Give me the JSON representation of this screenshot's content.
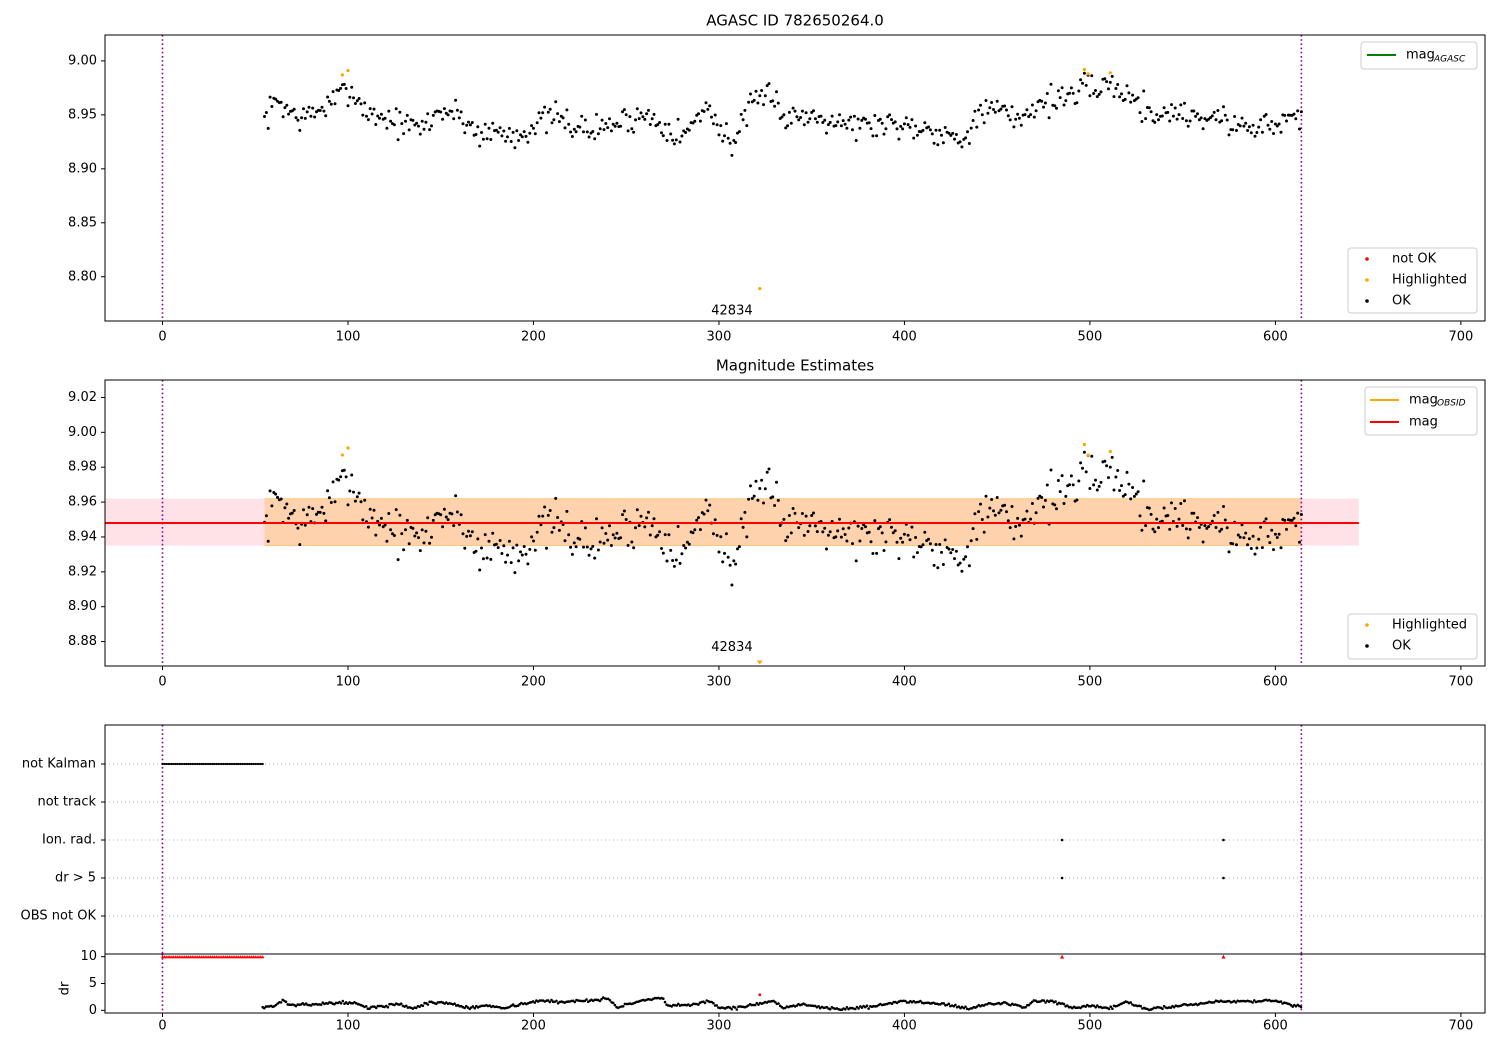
{
  "chart_data": [
    {
      "type": "scatter",
      "title": "AGASC ID 782650264.0",
      "xlabel": "",
      "ylabel": "",
      "xlim": [
        -31,
        713
      ],
      "ylim": [
        8.759,
        9.024
      ],
      "x_ticks": [
        0,
        100,
        200,
        300,
        400,
        500,
        600,
        700
      ],
      "y_ticks": [
        8.8,
        8.85,
        8.9,
        8.95,
        9.0
      ],
      "vlines": [
        0,
        614
      ],
      "grid": false,
      "annotations": [
        {
          "text": "42834",
          "x": 307,
          "y": 8.77
        }
      ],
      "legend_lines": {
        "position": "top-right",
        "entries": [
          {
            "label": "mag",
            "subscript": "AGASC",
            "color": "#008000"
          }
        ]
      },
      "legend_markers": {
        "position": "bottom-right",
        "entries": [
          {
            "label": "not OK",
            "color": "#ff0000"
          },
          {
            "label": "Highlighted",
            "color": "#ffa500"
          },
          {
            "label": "OK",
            "color": "#000000"
          }
        ]
      },
      "highlighted_points": [
        {
          "x": 97,
          "y": 8.987
        },
        {
          "x": 100,
          "y": 8.991
        },
        {
          "x": 497,
          "y": 8.992
        },
        {
          "x": 499,
          "y": 8.988
        },
        {
          "x": 511,
          "y": 8.989
        },
        {
          "x": 322,
          "y": 8.789
        }
      ],
      "ok_series_profile": {
        "x_range": [
          55,
          614
        ],
        "knots": [
          [
            55,
            8.945
          ],
          [
            62,
            8.965
          ],
          [
            67,
            8.955
          ],
          [
            75,
            8.946
          ],
          [
            85,
            8.955
          ],
          [
            92,
            8.962
          ],
          [
            100,
            8.975
          ],
          [
            105,
            8.965
          ],
          [
            112,
            8.95
          ],
          [
            120,
            8.948
          ],
          [
            130,
            8.94
          ],
          [
            140,
            8.938
          ],
          [
            150,
            8.955
          ],
          [
            160,
            8.95
          ],
          [
            170,
            8.933
          ],
          [
            180,
            8.935
          ],
          [
            190,
            8.93
          ],
          [
            200,
            8.94
          ],
          [
            210,
            8.948
          ],
          [
            220,
            8.942
          ],
          [
            230,
            8.935
          ],
          [
            240,
            8.94
          ],
          [
            250,
            8.945
          ],
          [
            260,
            8.95
          ],
          [
            270,
            8.942
          ],
          [
            280,
            8.93
          ],
          [
            288,
            8.945
          ],
          [
            295,
            8.962
          ],
          [
            300,
            8.935
          ],
          [
            308,
            8.925
          ],
          [
            315,
            8.95
          ],
          [
            325,
            8.968
          ],
          [
            330,
            8.972
          ],
          [
            335,
            8.945
          ],
          [
            345,
            8.95
          ],
          [
            360,
            8.948
          ],
          [
            375,
            8.94
          ],
          [
            390,
            8.942
          ],
          [
            405,
            8.94
          ],
          [
            420,
            8.935
          ],
          [
            430,
            8.925
          ],
          [
            438,
            8.948
          ],
          [
            450,
            8.955
          ],
          [
            460,
            8.945
          ],
          [
            470,
            8.958
          ],
          [
            480,
            8.965
          ],
          [
            490,
            8.968
          ],
          [
            500,
            8.975
          ],
          [
            510,
            8.978
          ],
          [
            518,
            8.972
          ],
          [
            525,
            8.962
          ],
          [
            535,
            8.95
          ],
          [
            545,
            8.953
          ],
          [
            560,
            8.948
          ],
          [
            570,
            8.948
          ],
          [
            580,
            8.938
          ],
          [
            590,
            8.942
          ],
          [
            600,
            8.938
          ],
          [
            608,
            8.95
          ],
          [
            614,
            8.945
          ]
        ],
        "noise": 0.0065,
        "spacing": 1.0
      }
    },
    {
      "type": "scatter",
      "title": "Magnitude Estimates",
      "xlabel": "",
      "ylabel": "",
      "xlim": [
        -31,
        713
      ],
      "ylim": [
        8.866,
        9.03
      ],
      "x_ticks": [
        0,
        100,
        200,
        300,
        400,
        500,
        600,
        700
      ],
      "y_ticks": [
        8.88,
        8.9,
        8.92,
        8.94,
        8.96,
        8.98,
        9.0,
        9.02
      ],
      "vlines": [
        0,
        614
      ],
      "grid": false,
      "mag": 8.948,
      "mag_band": {
        "low": 8.935,
        "high": 8.962,
        "x_from": -31,
        "x_to": 645
      },
      "mag_obsid_band": {
        "low": 8.935,
        "high": 8.962,
        "x_from": 55,
        "x_to": 614
      },
      "annotations": [
        {
          "text": "42834",
          "x": 307,
          "y": 8.872
        }
      ],
      "outlier_marker": {
        "x": 322,
        "y": 8.868,
        "color": "#ffa500"
      },
      "legend_lines": {
        "position": "top-right",
        "entries": [
          {
            "label": "mag",
            "subscript": "OBSID",
            "color": "#ffa500"
          },
          {
            "label": "mag",
            "subscript": "",
            "color": "#ff0000"
          }
        ]
      },
      "legend_markers": {
        "position": "bottom-right",
        "entries": [
          {
            "label": "Highlighted",
            "color": "#ffa500"
          },
          {
            "label": "OK",
            "color": "#000000"
          }
        ]
      },
      "highlighted_points": [
        {
          "x": 97,
          "y": 8.987
        },
        {
          "x": 100,
          "y": 8.991
        },
        {
          "x": 497,
          "y": 8.993
        },
        {
          "x": 499,
          "y": 8.987
        },
        {
          "x": 511,
          "y": 8.989
        }
      ]
    },
    {
      "type": "scatter",
      "title": "",
      "xlabel": "",
      "ylabel": "",
      "xlim": [
        -31,
        713
      ],
      "categories": [
        "not Kalman",
        "not track",
        "Ion. rad.",
        "dr > 5",
        "OBS not OK"
      ],
      "vlines": [
        0,
        614
      ],
      "grid": "horizontal dotted",
      "flags": {
        "not Kalman": {
          "x_from": 0,
          "x_to": 54
        },
        "not track": [],
        "Ion. rad.": [
          485,
          572
        ],
        "dr > 5": [
          485,
          572
        ],
        "OBS not OK": []
      }
    },
    {
      "type": "scatter",
      "title": "",
      "xlabel": "",
      "ylabel": "dr",
      "xlim": [
        -31,
        713
      ],
      "ylim": [
        -0.5,
        10.5
      ],
      "x_ticks": [
        0,
        100,
        200,
        300,
        400,
        500,
        600,
        700
      ],
      "x_tick_labels": [
        "0",
        "100",
        "200",
        "300",
        "400",
        "500",
        "600",
        "700"
      ],
      "y_ticks": [
        0,
        5,
        10
      ],
      "vlines": [
        0,
        614
      ],
      "dr_capped": {
        "value": 10,
        "x_from": 0,
        "x_to": 54,
        "extra_x": [
          485,
          572
        ],
        "color": "#ff0000"
      },
      "dr_outlier": {
        "x": 322,
        "y": 2.9,
        "color": "#ff0000"
      },
      "dr_profile": {
        "x_range": [
          54,
          614
        ],
        "knots": [
          [
            54,
            0.6
          ],
          [
            60,
            0.8
          ],
          [
            65,
            1.8
          ],
          [
            70,
            0.9
          ],
          [
            80,
            1.1
          ],
          [
            95,
            1.4
          ],
          [
            100,
            1.5
          ],
          [
            105,
            1.2
          ],
          [
            110,
            0.5
          ],
          [
            120,
            0.7
          ],
          [
            125,
            1.3
          ],
          [
            135,
            0.4
          ],
          [
            145,
            1.5
          ],
          [
            155,
            1.3
          ],
          [
            165,
            0.4
          ],
          [
            175,
            0.9
          ],
          [
            185,
            0.5
          ],
          [
            195,
            1.3
          ],
          [
            205,
            1.8
          ],
          [
            215,
            1.5
          ],
          [
            225,
            1.8
          ],
          [
            235,
            2.0
          ],
          [
            240,
            2.2
          ],
          [
            245,
            0.6
          ],
          [
            255,
            1.5
          ],
          [
            265,
            2.1
          ],
          [
            270,
            2.2
          ],
          [
            272,
            0.8
          ],
          [
            285,
            1.0
          ],
          [
            295,
            1.8
          ],
          [
            300,
            0.5
          ],
          [
            310,
            0.4
          ],
          [
            320,
            1.2
          ],
          [
            330,
            1.6
          ],
          [
            335,
            0.3
          ],
          [
            345,
            1.2
          ],
          [
            355,
            0.6
          ],
          [
            365,
            0.2
          ],
          [
            375,
            0.5
          ],
          [
            385,
            0.8
          ],
          [
            395,
            1.5
          ],
          [
            405,
            1.7
          ],
          [
            415,
            1.4
          ],
          [
            425,
            1.0
          ],
          [
            435,
            0.3
          ],
          [
            445,
            1.2
          ],
          [
            455,
            1.3
          ],
          [
            465,
            0.6
          ],
          [
            470,
            1.8
          ],
          [
            480,
            1.6
          ],
          [
            485,
            1.2
          ],
          [
            490,
            0.3
          ],
          [
            500,
            0.8
          ],
          [
            510,
            0.3
          ],
          [
            520,
            1.6
          ],
          [
            530,
            0.2
          ],
          [
            540,
            0.5
          ],
          [
            550,
            1.0
          ],
          [
            560,
            1.2
          ],
          [
            565,
            1.6
          ],
          [
            575,
            1.7
          ],
          [
            590,
            1.7
          ],
          [
            600,
            1.8
          ],
          [
            610,
            0.8
          ],
          [
            614,
            0.7
          ]
        ],
        "noise": 0.12,
        "spacing": 0.9
      }
    }
  ]
}
